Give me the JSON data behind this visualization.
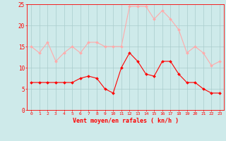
{
  "hours": [
    0,
    1,
    2,
    3,
    4,
    5,
    6,
    7,
    8,
    9,
    10,
    11,
    12,
    13,
    14,
    15,
    16,
    17,
    18,
    19,
    20,
    21,
    22,
    23
  ],
  "wind_avg": [
    6.5,
    6.5,
    6.5,
    6.5,
    6.5,
    6.5,
    7.5,
    8.0,
    7.5,
    5.0,
    4.0,
    10.0,
    13.5,
    11.5,
    8.5,
    8.0,
    11.5,
    11.5,
    8.5,
    6.5,
    6.5,
    5.0,
    4.0,
    4.0
  ],
  "wind_gust": [
    15.0,
    13.5,
    16.0,
    11.5,
    13.5,
    15.0,
    13.5,
    16.0,
    16.0,
    15.0,
    15.0,
    15.0,
    24.5,
    24.5,
    24.5,
    21.5,
    23.5,
    21.5,
    19.0,
    13.5,
    15.0,
    13.5,
    10.5,
    11.5
  ],
  "avg_color": "#ff0000",
  "gust_color": "#ffaaaa",
  "bg_color": "#ceeaea",
  "grid_color": "#aacccc",
  "xlabel": "Vent moyen/en rafales ( kn/h )",
  "xlabel_color": "#ff0000",
  "tick_color": "#ff0000",
  "ylim": [
    0,
    25
  ],
  "yticks": [
    0,
    5,
    10,
    15,
    20,
    25
  ],
  "marker": "D",
  "markersize": 2.0,
  "linewidth": 0.8
}
